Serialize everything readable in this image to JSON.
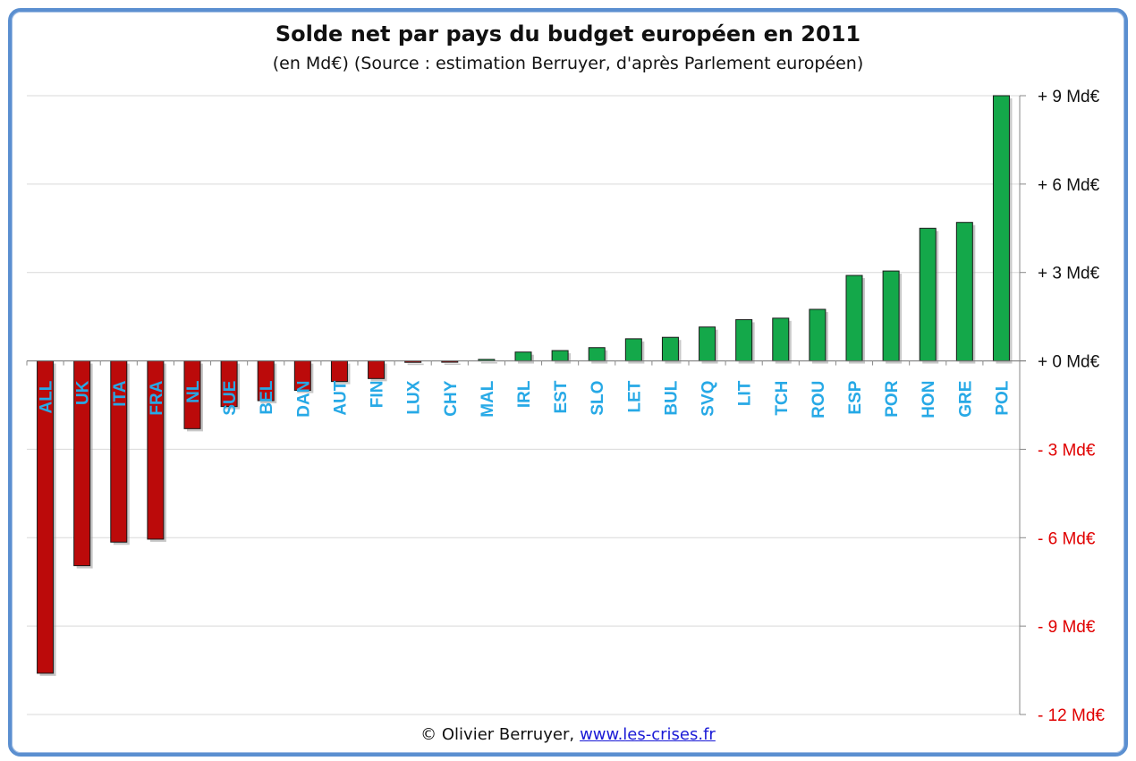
{
  "chart_data": {
    "type": "bar",
    "title": "Solde net par pays du budget européen en 2011",
    "subtitle": "(en Md€) (Source : estimation Berruyer, d'après Parlement européen)",
    "categories": [
      "ALL",
      "UK",
      "ITA",
      "FRA",
      "NL",
      "SUE",
      "BEL",
      "DAN",
      "AUT",
      "FIN",
      "LUX",
      "CHY",
      "MAL",
      "IRL",
      "EST",
      "SLO",
      "LET",
      "BUL",
      "SVQ",
      "LIT",
      "TCH",
      "ROU",
      "ESP",
      "POR",
      "HON",
      "GRE",
      "POL"
    ],
    "values": [
      -10.6,
      -6.95,
      -6.15,
      -6.05,
      -2.3,
      -1.55,
      -1.35,
      -1.0,
      -0.7,
      -0.6,
      -0.05,
      -0.03,
      0.05,
      0.3,
      0.35,
      0.45,
      0.75,
      0.8,
      1.15,
      1.4,
      1.45,
      1.75,
      2.9,
      3.05,
      4.5,
      4.7,
      9.0
    ],
    "ylim": [
      -12,
      9
    ],
    "yticks": [
      {
        "value": 9,
        "label": "+ 9 Md€"
      },
      {
        "value": 6,
        "label": "+ 6 Md€"
      },
      {
        "value": 3,
        "label": "+ 3 Md€"
      },
      {
        "value": 0,
        "label": "+ 0 Md€"
      },
      {
        "value": -3,
        "label": "- 3 Md€"
      },
      {
        "value": -6,
        "label": "- 6 Md€"
      },
      {
        "value": -9,
        "label": "- 9 Md€"
      },
      {
        "value": -12,
        "label": "- 12 Md€"
      }
    ],
    "grid": true,
    "axis_position": "right",
    "colors": {
      "positive_bar": "#14a84a",
      "negative_bar": "#bb0a0a",
      "category_label": "#27a9e6",
      "positive_tick": "#111111",
      "negative_tick": "#e00000",
      "grid": "#d9d9d9"
    }
  },
  "footer": {
    "copyright": "© Olivier Berruyer,",
    "link": "www.les-crises.fr"
  },
  "frame_color": "#5b8fd0"
}
